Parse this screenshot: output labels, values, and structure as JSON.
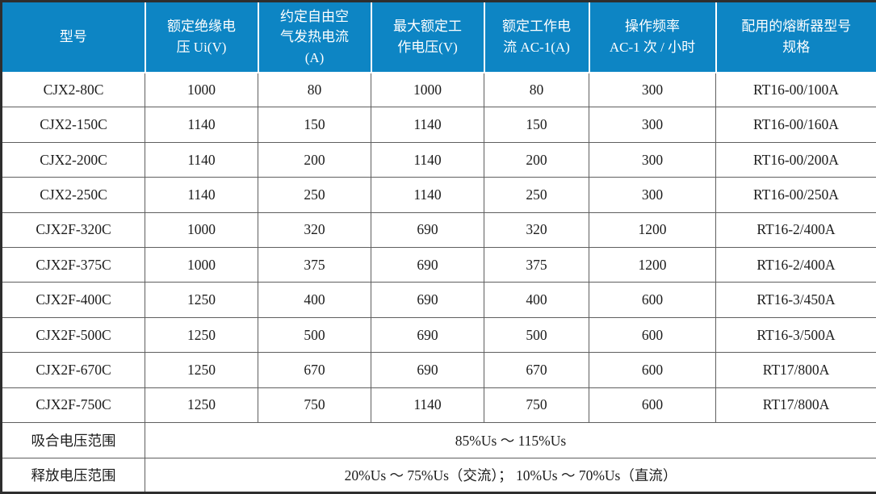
{
  "table": {
    "title_semantic": "contactor-specifications-table",
    "columns": [
      "型号",
      "额定绝缘电\n压 Ui(V)",
      "约定自由空\n气发热电流\n(A)",
      "最大额定工\n作电压(V)",
      "额定工作电\n流 AC-1(A)",
      "操作频率\nAC-1 次 / 小时",
      "配用的熔断器型号\n规格"
    ],
    "column_keys": [
      "model",
      "rated-insulation-voltage",
      "free-air-thermal-current",
      "max-rated-operational-voltage",
      "rated-operational-current-ac1",
      "operating-frequency-ac1",
      "matching-fuse-type"
    ],
    "rows": [
      [
        "CJX2-80C",
        "1000",
        "80",
        "1000",
        "80",
        "300",
        "RT16-00/100A"
      ],
      [
        "CJX2-150C",
        "1140",
        "150",
        "1140",
        "150",
        "300",
        "RT16-00/160A"
      ],
      [
        "CJX2-200C",
        "1140",
        "200",
        "1140",
        "200",
        "300",
        "RT16-00/200A"
      ],
      [
        "CJX2-250C",
        "1140",
        "250",
        "1140",
        "250",
        "300",
        "RT16-00/250A"
      ],
      [
        "CJX2F-320C",
        "1000",
        "320",
        "690",
        "320",
        "1200",
        "RT16-2/400A"
      ],
      [
        "CJX2F-375C",
        "1000",
        "375",
        "690",
        "375",
        "1200",
        "RT16-2/400A"
      ],
      [
        "CJX2F-400C",
        "1250",
        "400",
        "690",
        "400",
        "600",
        "RT16-3/450A"
      ],
      [
        "CJX2F-500C",
        "1250",
        "500",
        "690",
        "500",
        "600",
        "RT16-3/500A"
      ],
      [
        "CJX2F-670C",
        "1250",
        "670",
        "690",
        "670",
        "600",
        "RT17/800A"
      ],
      [
        "CJX2F-750C",
        "1250",
        "750",
        "1140",
        "750",
        "600",
        "RT17/800A"
      ]
    ],
    "footer_rows": [
      {
        "label": "吸合电压范围",
        "value": "85%Us ～ 115%Us"
      },
      {
        "label": "释放电压范围",
        "value": "20%Us ～ 75%Us（交流）； 10%Us ～ 70%Us（直流）"
      }
    ]
  },
  "colors": {
    "header_background": "#0d85c4",
    "header_text": "#ffffff",
    "body_text": "#1c1c1c",
    "grid_line": "#5f5f5f",
    "outer_border": "#2e2e2e",
    "header_separator": "#ffffff"
  }
}
